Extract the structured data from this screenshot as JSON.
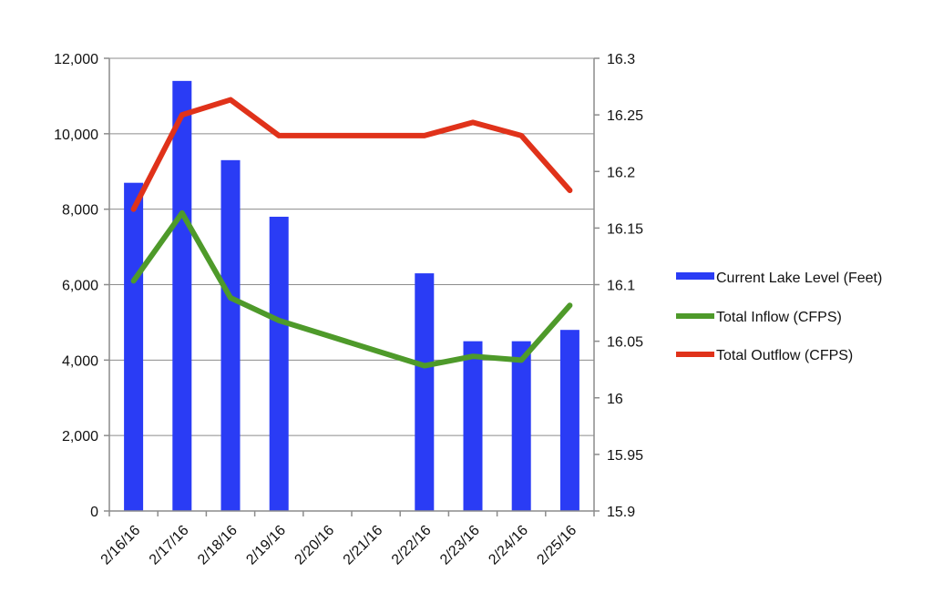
{
  "chart_data": {
    "type": "bar",
    "title": "",
    "categories": [
      "2/16/16",
      "2/17/16",
      "2/18/16",
      "2/19/16",
      "2/20/16",
      "2/21/16",
      "2/22/16",
      "2/23/16",
      "2/24/16",
      "2/25/16"
    ],
    "left_axis": {
      "ylim": [
        0,
        12000
      ],
      "ticks": [
        0,
        2000,
        4000,
        6000,
        8000,
        10000,
        12000
      ],
      "tick_labels": [
        "0",
        "2,000",
        "4,000",
        "6,000",
        "8,000",
        "10,000",
        "12,000"
      ]
    },
    "right_axis": {
      "ylim": [
        15.9,
        16.3
      ],
      "ticks": [
        15.9,
        15.95,
        16,
        16.05,
        16.1,
        16.15,
        16.2,
        16.25,
        16.3
      ],
      "tick_labels": [
        "15.9",
        "15.95",
        "16",
        "16.05",
        "16.1",
        "16.15",
        "16.2",
        "16.25",
        "16.3"
      ]
    },
    "series": [
      {
        "name": "Current Lake Level (Feet)",
        "kind": "bar",
        "axis": "right",
        "color": "#2a3cf5",
        "values": [
          16.19,
          16.28,
          16.21,
          16.16,
          null,
          null,
          16.11,
          16.05,
          16.05,
          16.06
        ]
      },
      {
        "name": "Total Inflow (CFPS)",
        "kind": "line",
        "axis": "left",
        "color": "#4e9a2a",
        "values": [
          6100,
          7900,
          5650,
          5050,
          4650,
          4250,
          3850,
          4100,
          4000,
          5450
        ]
      },
      {
        "name": "Total Outflow (CFPS)",
        "kind": "line",
        "axis": "left",
        "color": "#e0321a",
        "values": [
          8000,
          10500,
          10900,
          9950,
          9950,
          9950,
          9950,
          10300,
          9950,
          8500
        ]
      }
    ],
    "grid": true,
    "legend_position": "right"
  }
}
